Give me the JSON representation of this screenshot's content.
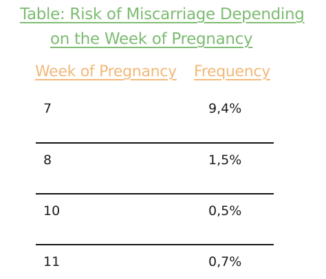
{
  "title": {
    "line1": "Table: Risk of Miscarriage Depending",
    "line2": "on the Week of Pregnancy"
  },
  "chart_data": {
    "type": "table",
    "columns": [
      "Week of Pregnancy",
      "Frequency"
    ],
    "rows": [
      {
        "week": "7",
        "frequency": "9,4%"
      },
      {
        "week": "8",
        "frequency": "1,5%"
      },
      {
        "week": "10",
        "frequency": "0,5%"
      },
      {
        "week": "11",
        "frequency": "0,7%"
      }
    ]
  },
  "colors": {
    "title": "#7dbb72",
    "header": "#f2b87a",
    "text": "#1a1a1a",
    "rule": "#111111"
  }
}
